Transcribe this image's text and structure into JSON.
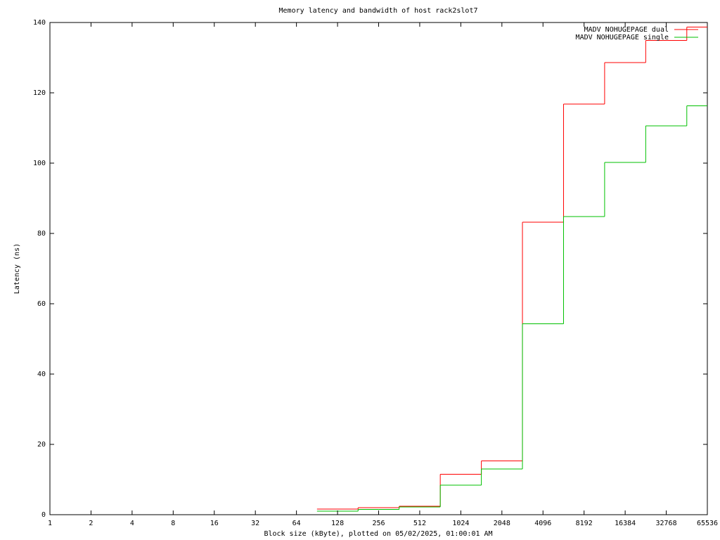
{
  "chart_data": {
    "type": "histeps",
    "title": "Memory latency and bandwidth of host rack2slot7",
    "x_label": "Block size (kByte), plotted on 05/02/2025, 01:00:01 AM",
    "y_label": "Latency (ns)",
    "x": [
      128,
      256,
      512,
      1024,
      2048,
      4096,
      8192,
      16384,
      32768,
      65536
    ],
    "series": [
      {
        "name": "MADV NOHUGEPAGE dual",
        "color": "#ff0000",
        "values": [
          1.6,
          2.0,
          2.4,
          11.5,
          15.3,
          83.2,
          116.8,
          128.6,
          134.9,
          138.7
        ]
      },
      {
        "name": "MADV NOHUGEPAGE single",
        "color": "#00c000",
        "values": [
          1.0,
          1.5,
          2.2,
          8.4,
          13.0,
          54.3,
          84.8,
          100.2,
          110.6,
          116.3
        ]
      }
    ],
    "xscale": "log2",
    "xlim": [
      1,
      65536
    ],
    "xticks": [
      1,
      2,
      4,
      8,
      16,
      32,
      64,
      128,
      256,
      512,
      1024,
      2048,
      4096,
      8192,
      16384,
      32768,
      65536
    ],
    "ylim": [
      0,
      140
    ],
    "yticks": [
      0,
      20,
      40,
      60,
      80,
      100,
      120,
      140
    ],
    "legend": "top-right"
  }
}
